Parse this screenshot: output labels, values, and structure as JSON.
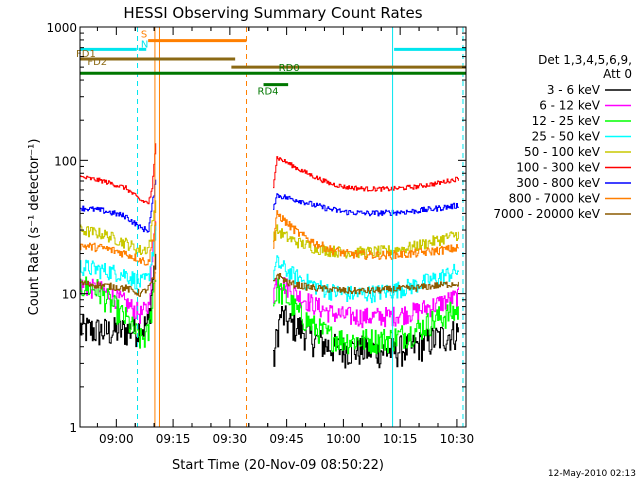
{
  "chart_data": {
    "type": "line",
    "title": "HESSI Observing Summary Count Rates",
    "xlabel": "Start Time (20-Nov-09 08:50:22)",
    "ylabel": "Count Rate (s⁻¹ detector⁻¹)",
    "ylim": [
      1,
      1000
    ],
    "yscale": "log",
    "xlim_minutes": [
      0,
      102
    ],
    "x_ticks": [
      {
        "label": "09:00",
        "min": 9.6
      },
      {
        "label": "09:15",
        "min": 24.6
      },
      {
        "label": "09:30",
        "min": 39.6
      },
      {
        "label": "09:45",
        "min": 54.6
      },
      {
        "label": "10:00",
        "min": 69.6
      },
      {
        "label": "10:15",
        "min": 84.6
      },
      {
        "label": "10:30",
        "min": 99.6
      }
    ],
    "y_ticks": [
      {
        "label": "1",
        "value": 1
      },
      {
        "label": "10",
        "value": 10
      },
      {
        "label": "100",
        "value": 100
      },
      {
        "label": "1000",
        "value": 1000
      }
    ],
    "legend_header": [
      "Det 1,3,4,5,6,9,",
      "Att 0"
    ],
    "legend_placement": "right",
    "series": [
      {
        "name": "3 - 6 keV",
        "color": "#000000",
        "seg1": [
          [
            0,
            5.5
          ],
          [
            6,
            5.2
          ],
          [
            12,
            5.3
          ],
          [
            16,
            5.5
          ],
          [
            18,
            6
          ],
          [
            20,
            20
          ]
        ],
        "seg2": [
          [
            51,
            3
          ],
          [
            52,
            5
          ],
          [
            53,
            7
          ],
          [
            55,
            6
          ],
          [
            58,
            5.5
          ],
          [
            62,
            4.5
          ],
          [
            66,
            4
          ],
          [
            70,
            3.8
          ],
          [
            76,
            3.8
          ],
          [
            82,
            3.7
          ],
          [
            88,
            4
          ],
          [
            94,
            4.6
          ],
          [
            100,
            5.2
          ]
        ]
      },
      {
        "name": "6 - 12 keV",
        "color": "#ff00ff",
        "seg1": [
          [
            0,
            11.5
          ],
          [
            6,
            10.5
          ],
          [
            12,
            8.5
          ],
          [
            16,
            7
          ],
          [
            18,
            8
          ],
          [
            20,
            40
          ]
        ],
        "seg2": [
          [
            51,
            10
          ],
          [
            52,
            13
          ],
          [
            55,
            11
          ],
          [
            58,
            9.5
          ],
          [
            62,
            8.2
          ],
          [
            66,
            7.2
          ],
          [
            70,
            6.8
          ],
          [
            76,
            6.7
          ],
          [
            82,
            6.8
          ],
          [
            88,
            7.3
          ],
          [
            94,
            8.3
          ],
          [
            100,
            9.5
          ]
        ]
      },
      {
        "name": "12 - 25 keV",
        "color": "#00ff00",
        "seg1": [
          [
            0,
            11.5
          ],
          [
            4,
            11
          ],
          [
            8,
            8.5
          ],
          [
            12,
            6.5
          ],
          [
            16,
            4.5
          ],
          [
            18,
            5
          ],
          [
            20,
            15
          ]
        ],
        "seg2": [
          [
            51,
            8
          ],
          [
            52,
            11
          ],
          [
            55,
            9
          ],
          [
            58,
            7
          ],
          [
            62,
            5.6
          ],
          [
            66,
            4.8
          ],
          [
            70,
            4.5
          ],
          [
            76,
            4.5
          ],
          [
            82,
            4.6
          ],
          [
            88,
            5.2
          ],
          [
            94,
            6.5
          ],
          [
            100,
            7.5
          ]
        ]
      },
      {
        "name": "25 - 50 keV",
        "color": "#00ffff",
        "seg1": [
          [
            0,
            16
          ],
          [
            6,
            15
          ],
          [
            12,
            14
          ],
          [
            16,
            12
          ],
          [
            18,
            13
          ],
          [
            20,
            30
          ]
        ],
        "seg2": [
          [
            51,
            14
          ],
          [
            52,
            17
          ],
          [
            55,
            14.5
          ],
          [
            58,
            13
          ],
          [
            62,
            11.5
          ],
          [
            66,
            10.5
          ],
          [
            70,
            10
          ],
          [
            76,
            10
          ],
          [
            82,
            10.5
          ],
          [
            88,
            11.5
          ],
          [
            94,
            13
          ],
          [
            100,
            15
          ]
        ]
      },
      {
        "name": "50 - 100 keV",
        "color": "#c8c800",
        "seg1": [
          [
            0,
            30
          ],
          [
            6,
            28
          ],
          [
            12,
            24
          ],
          [
            16,
            21
          ],
          [
            18,
            22
          ],
          [
            20,
            50
          ]
        ],
        "seg2": [
          [
            51,
            26
          ],
          [
            52,
            30
          ],
          [
            55,
            26
          ],
          [
            58,
            24
          ],
          [
            62,
            22
          ],
          [
            66,
            21
          ],
          [
            70,
            20.5
          ],
          [
            76,
            20.5
          ],
          [
            82,
            21
          ],
          [
            88,
            22.5
          ],
          [
            94,
            25
          ],
          [
            100,
            28
          ]
        ]
      },
      {
        "name": "100 - 300 keV",
        "color": "#ff0000",
        "seg1": [
          [
            0,
            75
          ],
          [
            6,
            70
          ],
          [
            12,
            62
          ],
          [
            16,
            50
          ],
          [
            18,
            48
          ],
          [
            19,
            60
          ],
          [
            20,
            140
          ]
        ],
        "seg2": [
          [
            51,
            65
          ],
          [
            52,
            105
          ],
          [
            55,
            95
          ],
          [
            58,
            85
          ],
          [
            62,
            75
          ],
          [
            66,
            67
          ],
          [
            70,
            63
          ],
          [
            76,
            61
          ],
          [
            82,
            61
          ],
          [
            88,
            63
          ],
          [
            94,
            67
          ],
          [
            100,
            73
          ]
        ]
      },
      {
        "name": "300 - 800 keV",
        "color": "#0000ff",
        "seg1": [
          [
            0,
            44
          ],
          [
            6,
            42
          ],
          [
            12,
            38
          ],
          [
            16,
            31
          ],
          [
            18,
            30
          ],
          [
            20,
            70
          ]
        ],
        "seg2": [
          [
            51,
            45
          ],
          [
            52,
            55
          ],
          [
            55,
            52
          ],
          [
            58,
            50
          ],
          [
            62,
            46
          ],
          [
            66,
            43
          ],
          [
            70,
            41
          ],
          [
            76,
            40
          ],
          [
            82,
            40.5
          ],
          [
            88,
            41.5
          ],
          [
            94,
            43.5
          ],
          [
            100,
            46
          ]
        ]
      },
      {
        "name": "800 - 7000 keV",
        "color": "#ff7f00",
        "seg1": [
          [
            0,
            23
          ],
          [
            6,
            22
          ],
          [
            12,
            20
          ],
          [
            16,
            18
          ],
          [
            18,
            17
          ],
          [
            20,
            35
          ]
        ],
        "seg2": [
          [
            51,
            22
          ],
          [
            52,
            40
          ],
          [
            55,
            33
          ],
          [
            58,
            28
          ],
          [
            62,
            24
          ],
          [
            66,
            21.5
          ],
          [
            70,
            20
          ],
          [
            76,
            19.5
          ],
          [
            82,
            19.5
          ],
          [
            88,
            20
          ],
          [
            94,
            21
          ],
          [
            100,
            22
          ]
        ]
      },
      {
        "name": "7000 - 20000 keV",
        "color": "#8b5a00",
        "seg1": [
          [
            0,
            12
          ],
          [
            6,
            11.5
          ],
          [
            12,
            11
          ],
          [
            16,
            10
          ],
          [
            18,
            11
          ],
          [
            20,
            14
          ]
        ],
        "seg2": [
          [
            51,
            12
          ],
          [
            52,
            14
          ],
          [
            55,
            12
          ],
          [
            58,
            11.5
          ],
          [
            62,
            11
          ],
          [
            66,
            10.8
          ],
          [
            70,
            10.5
          ],
          [
            76,
            10.5
          ],
          [
            82,
            10.8
          ],
          [
            88,
            11
          ],
          [
            94,
            11.5
          ],
          [
            100,
            12
          ]
        ]
      }
    ],
    "flag_bars": [
      {
        "label": "",
        "color": "#00e5ee",
        "value": 680,
        "start": 0,
        "end": 15
      },
      {
        "label": "N",
        "color": "#00e5ee",
        "value": 680,
        "start": 15.5,
        "end": 17.5
      },
      {
        "label": "",
        "color": "#00e5ee",
        "value": 680,
        "start": 83,
        "end": 102
      },
      {
        "label": "S",
        "color": "#ff7f00",
        "value": 790,
        "start": 18,
        "end": 44
      },
      {
        "label": "FD1",
        "color": "#8b6914",
        "value": 575,
        "start": 0,
        "end": 41
      },
      {
        "label": "FD2",
        "color": "#8b6914",
        "value": 500,
        "start": 40,
        "end": 102
      },
      {
        "label": "RD0",
        "color": "#007700",
        "value": 450,
        "start": 0,
        "end": 102
      },
      {
        "label": "RD4",
        "color": "#007700",
        "value": 370,
        "start": 48.5,
        "end": 55
      }
    ],
    "vertical_lines": [
      {
        "min": 0,
        "color": "#00e5ee",
        "style": "dash"
      },
      {
        "min": 15.2,
        "color": "#00e5ee",
        "style": "dash"
      },
      {
        "min": 19.8,
        "color": "#ff7f00",
        "style": "solid"
      },
      {
        "min": 21,
        "color": "#ff7f00",
        "style": "solid"
      },
      {
        "min": 44,
        "color": "#ff7f00",
        "style": "dash"
      },
      {
        "min": 82.6,
        "color": "#00e5ee",
        "style": "solid"
      },
      {
        "min": 101.2,
        "color": "#00e5ee",
        "style": "dash"
      }
    ]
  },
  "footer": {
    "date_stamp": "12-May-2010 02:13"
  }
}
